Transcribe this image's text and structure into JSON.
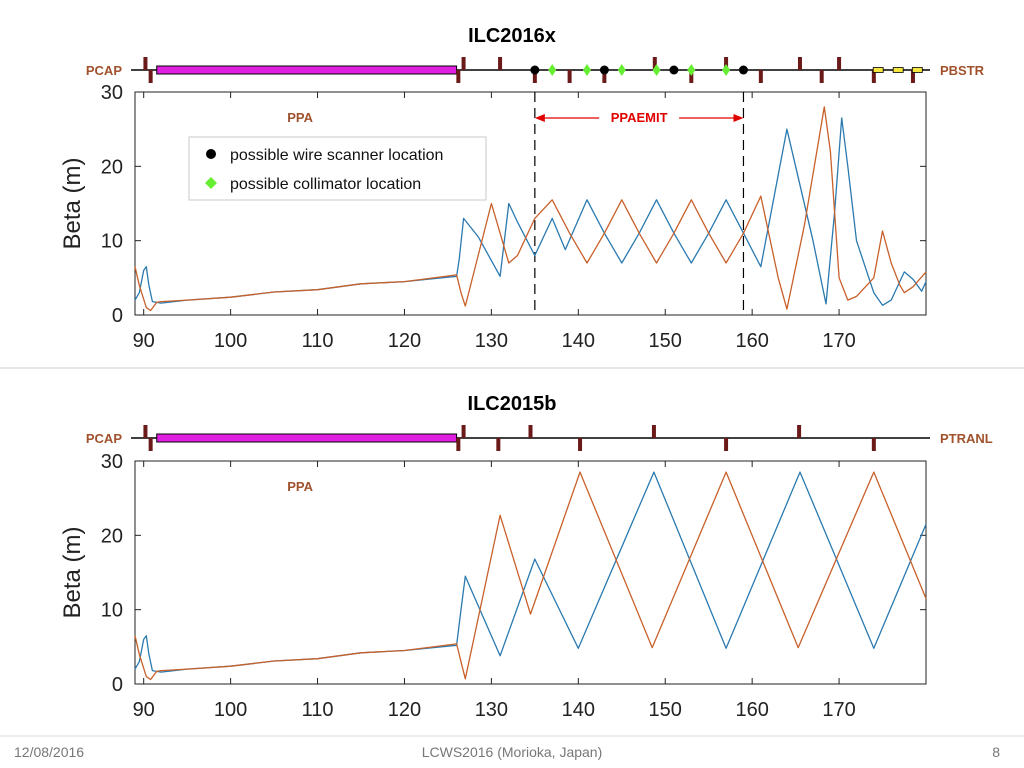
{
  "footer": {
    "date": "12/08/2016",
    "center": "LCWS2016 (Morioka, Japan)",
    "page": "8"
  },
  "colors": {
    "blue": "#2a7ab0",
    "orange": "#c8602a",
    "magnet": "#6b1a1a",
    "solenoid": "#e020e0",
    "marker_label": "#a0522d",
    "legend_green": "#66ee33"
  },
  "chart_data": [
    {
      "type": "line",
      "title": "ILC2016x",
      "ylabel": "Beta (m)",
      "xlim": [
        89,
        180
      ],
      "ylim": [
        0,
        30
      ],
      "xticks": [
        90,
        100,
        110,
        120,
        130,
        140,
        150,
        160,
        170
      ],
      "yticks": [
        0,
        10,
        20,
        30
      ],
      "beamline": {
        "start_label": "PCAP",
        "end_label": "PBSTR",
        "solenoid": [
          91.5,
          126
        ],
        "magnets_up": [
          90.2,
          126.8,
          131,
          148.8,
          157,
          165.5,
          170
        ],
        "magnets_down": [
          90.8,
          126.2,
          135,
          139,
          143,
          153,
          161,
          168,
          174,
          178.5
        ],
        "wire_scanners": [
          135,
          143,
          151,
          159
        ],
        "collimators": [
          137,
          141,
          145,
          149,
          153,
          157
        ],
        "yellow_boxes": [
          174.5,
          176.8,
          179
        ]
      },
      "annotations": [
        {
          "text": "PPA",
          "x": 108
        },
        {
          "text": "PPAEMIT",
          "x": 147,
          "from": 135,
          "to": 159
        }
      ],
      "vlines": [
        135,
        159
      ],
      "legend": {
        "position": "top-left",
        "items": [
          "possible wire scanner location",
          "possible collimator location"
        ]
      },
      "series": [
        {
          "color": "blue",
          "points": [
            [
              89,
              2
            ],
            [
              89.5,
              3
            ],
            [
              90,
              6
            ],
            [
              90.3,
              6.5
            ],
            [
              90.6,
              4
            ],
            [
              91,
              1.8
            ],
            [
              92,
              1.6
            ],
            [
              95,
              2.0
            ],
            [
              100,
              2.4
            ],
            [
              105,
              3.1
            ],
            [
              110,
              3.4
            ],
            [
              115,
              4.2
            ],
            [
              120,
              4.5
            ],
            [
              126,
              5.2
            ],
            [
              126.3,
              7.5
            ],
            [
              126.8,
              13
            ],
            [
              128.5,
              10.5
            ],
            [
              131,
              5.2
            ],
            [
              132,
              15
            ],
            [
              133,
              12.5
            ],
            [
              135,
              8
            ],
            [
              137,
              13
            ],
            [
              138.5,
              8.8
            ],
            [
              141,
              15.5
            ],
            [
              143,
              11
            ],
            [
              145,
              7
            ],
            [
              147,
              11
            ],
            [
              149,
              15.5
            ],
            [
              151,
              11
            ],
            [
              153,
              7
            ],
            [
              155,
              11
            ],
            [
              157,
              15.5
            ],
            [
              159,
              11
            ],
            [
              161,
              6.5
            ],
            [
              164,
              25
            ],
            [
              167,
              10
            ],
            [
              168.5,
              1.5
            ],
            [
              169.5,
              14
            ],
            [
              170.3,
              26.5
            ],
            [
              171,
              20
            ],
            [
              172,
              10
            ],
            [
              174,
              3
            ],
            [
              175,
              1.3
            ],
            [
              176,
              2
            ],
            [
              177.5,
              5.8
            ],
            [
              178.5,
              4.8
            ],
            [
              179.5,
              3.2
            ],
            [
              180,
              4.5
            ]
          ]
        },
        {
          "color": "orange",
          "points": [
            [
              89,
              6.5
            ],
            [
              89.5,
              4
            ],
            [
              90.3,
              1
            ],
            [
              90.8,
              0.6
            ],
            [
              91.5,
              1.7
            ],
            [
              92,
              1.8
            ],
            [
              95,
              2.0
            ],
            [
              100,
              2.4
            ],
            [
              105,
              3.1
            ],
            [
              110,
              3.4
            ],
            [
              115,
              4.2
            ],
            [
              120,
              4.5
            ],
            [
              126,
              5.4
            ],
            [
              126.5,
              3
            ],
            [
              127,
              1.2
            ],
            [
              130,
              15
            ],
            [
              131,
              11
            ],
            [
              132,
              7
            ],
            [
              133,
              8
            ],
            [
              135,
              13
            ],
            [
              137,
              15.5
            ],
            [
              139,
              11
            ],
            [
              141,
              7
            ],
            [
              143,
              11
            ],
            [
              145,
              15.5
            ],
            [
              147,
              11
            ],
            [
              149,
              7
            ],
            [
              151,
              11
            ],
            [
              153,
              15.5
            ],
            [
              155,
              11
            ],
            [
              157,
              7
            ],
            [
              159,
              11
            ],
            [
              161,
              16
            ],
            [
              163,
              5
            ],
            [
              164,
              0.8
            ],
            [
              166,
              12
            ],
            [
              168.3,
              28
            ],
            [
              169,
              22
            ],
            [
              170,
              5
            ],
            [
              171,
              2
            ],
            [
              172,
              2.5
            ],
            [
              174,
              5
            ],
            [
              175,
              11.3
            ],
            [
              176,
              7
            ],
            [
              177,
              4
            ],
            [
              177.5,
              3
            ],
            [
              178.5,
              3.8
            ],
            [
              180,
              5.8
            ]
          ]
        }
      ]
    },
    {
      "type": "line",
      "title": "ILC2015b",
      "ylabel": "Beta (m)",
      "xlim": [
        89,
        180
      ],
      "ylim": [
        0,
        30
      ],
      "xticks": [
        90,
        100,
        110,
        120,
        130,
        140,
        150,
        160,
        170
      ],
      "yticks": [
        0,
        10,
        20,
        30
      ],
      "beamline": {
        "start_label": "PCAP",
        "end_label": "PTRANL",
        "solenoid": [
          91.5,
          126
        ],
        "magnets_up": [
          90.2,
          126.8,
          134.5,
          148.7,
          165.4
        ],
        "magnets_down": [
          90.8,
          126.2,
          130.8,
          140.2,
          157,
          174
        ],
        "wire_scanners": [],
        "collimators": [],
        "yellow_boxes": []
      },
      "annotations": [
        {
          "text": "PPA",
          "x": 108
        }
      ],
      "vlines": [],
      "legend": null,
      "series": [
        {
          "color": "blue",
          "points": [
            [
              89,
              2
            ],
            [
              89.5,
              3
            ],
            [
              90,
              6
            ],
            [
              90.3,
              6.5
            ],
            [
              90.6,
              4
            ],
            [
              91,
              1.8
            ],
            [
              92,
              1.6
            ],
            [
              95,
              2.0
            ],
            [
              100,
              2.4
            ],
            [
              105,
              3.1
            ],
            [
              110,
              3.4
            ],
            [
              115,
              4.2
            ],
            [
              120,
              4.5
            ],
            [
              126,
              5.2
            ],
            [
              126.5,
              10
            ],
            [
              127,
              14.5
            ],
            [
              131,
              3.8
            ],
            [
              135,
              16.8
            ],
            [
              140,
              4.8
            ],
            [
              148.7,
              28.5
            ],
            [
              157,
              4.8
            ],
            [
              165.5,
              28.5
            ],
            [
              174,
              4.8
            ],
            [
              180,
              21.5
            ]
          ]
        },
        {
          "color": "orange",
          "points": [
            [
              89,
              6.5
            ],
            [
              89.5,
              4
            ],
            [
              90.3,
              1
            ],
            [
              90.8,
              0.6
            ],
            [
              91.5,
              1.7
            ],
            [
              92,
              1.8
            ],
            [
              95,
              2.0
            ],
            [
              100,
              2.4
            ],
            [
              105,
              3.1
            ],
            [
              110,
              3.4
            ],
            [
              115,
              4.2
            ],
            [
              120,
              4.5
            ],
            [
              126,
              5.4
            ],
            [
              126.5,
              3
            ],
            [
              127,
              0.7
            ],
            [
              131,
              22.7
            ],
            [
              134.5,
              9.4
            ],
            [
              140.2,
              28.5
            ],
            [
              148.5,
              4.9
            ],
            [
              157,
              28.5
            ],
            [
              165.3,
              4.9
            ],
            [
              174,
              28.5
            ],
            [
              180,
              11.5
            ]
          ]
        }
      ]
    }
  ]
}
